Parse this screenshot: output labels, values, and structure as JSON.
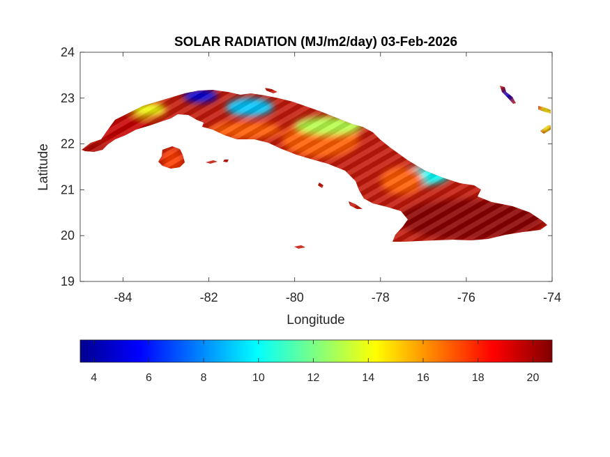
{
  "chart_data": {
    "type": "heatmap",
    "title": "SOLAR RADIATION (MJ/m2/day) 03-Feb-2026",
    "xlabel": "Longitude",
    "ylabel": "Latitude",
    "xlim": [
      -85,
      -74
    ],
    "ylim": [
      19,
      24
    ],
    "x_ticks": [
      -84,
      -82,
      -80,
      -78,
      -76,
      -74
    ],
    "y_ticks": [
      19,
      20,
      21,
      22,
      23,
      24
    ],
    "grid": false,
    "colormap": "jet",
    "colorbar": {
      "orientation": "horizontal",
      "location": "below",
      "range": [
        3.5,
        20.7
      ],
      "ticks": [
        4,
        6,
        8,
        10,
        12,
        14,
        16,
        18,
        20
      ]
    },
    "regions": [
      {
        "name": "far-western tip",
        "lon": [
          -84.9,
          -84.3
        ],
        "lat": [
          21.8,
          22.0
        ],
        "value": 20
      },
      {
        "name": "western Cuba south",
        "lon": [
          -84.5,
          -83.2
        ],
        "lat": [
          21.9,
          22.6
        ],
        "value": 19.5
      },
      {
        "name": "northwest coast near -83.5",
        "lon": [
          -83.8,
          -83.0
        ],
        "lat": [
          22.6,
          22.9
        ],
        "value": 14
      },
      {
        "name": "north coast near -82.2",
        "lon": [
          -82.6,
          -81.8
        ],
        "lat": [
          22.9,
          23.2
        ],
        "value": 5
      },
      {
        "name": "north coast near -81",
        "lon": [
          -81.6,
          -80.5
        ],
        "lat": [
          22.6,
          23.0
        ],
        "value": 9
      },
      {
        "name": "central south coast",
        "lon": [
          -82.0,
          -80.3
        ],
        "lat": [
          22.1,
          22.5
        ],
        "value": 17
      },
      {
        "name": "central Cuba",
        "lon": [
          -80.3,
          -78.5
        ],
        "lat": [
          21.7,
          22.5
        ],
        "value": 17
      },
      {
        "name": "north-central coast",
        "lon": [
          -80.0,
          -78.4
        ],
        "lat": [
          22.2,
          22.6
        ],
        "value": 13
      },
      {
        "name": "Camaguey north",
        "lon": [
          -77.8,
          -76.4
        ],
        "lat": [
          21.1,
          21.5
        ],
        "value": 10
      },
      {
        "name": "Camaguey south",
        "lon": [
          -78.0,
          -77.0
        ],
        "lat": [
          20.9,
          21.5
        ],
        "value": 17
      },
      {
        "name": "eastern Cuba",
        "lon": [
          -77.6,
          -74.2
        ],
        "lat": [
          19.9,
          20.8
        ],
        "value": 20.5
      },
      {
        "name": "Isla de la Juventud",
        "lon": [
          -83.1,
          -82.6
        ],
        "lat": [
          21.4,
          21.9
        ],
        "value": 17.5
      },
      {
        "name": "small cay near -75.1",
        "lon": [
          -75.2,
          -74.9
        ],
        "lat": [
          22.9,
          23.2
        ],
        "value": 5
      },
      {
        "name": "east edge islands",
        "lon": [
          -74.3,
          -74.0
        ],
        "lat": [
          22.2,
          22.9
        ],
        "value": 14
      }
    ]
  }
}
